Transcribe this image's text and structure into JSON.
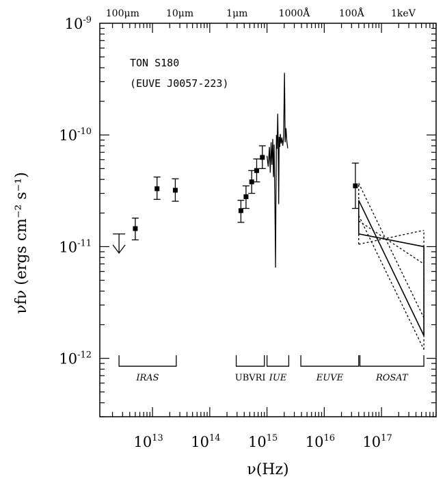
{
  "chart_data": {
    "type": "scatter",
    "xlabel": "ν(Hz)",
    "ylabel": "νfν (ergs cm⁻² s⁻¹)",
    "x_log": true,
    "y_log": true,
    "xlim": [
      1200000000000.0,
      9e+17
    ],
    "ylim": [
      3e-13,
      1e-09
    ],
    "annotations": [
      "TON S180",
      "(EUVE J0057-223)"
    ],
    "x_tick_labels": [
      "10",
      "13",
      "10",
      "14",
      "10",
      "15",
      "10",
      "16",
      "10",
      "17"
    ],
    "x_ticks": [
      10000000000000.0,
      100000000000000.0,
      1000000000000000.0,
      1e+16,
      1e+17
    ],
    "y_tick_labels": [
      "10",
      "-9",
      "10",
      "-10",
      "10",
      "-11",
      "10",
      "-12"
    ],
    "y_ticks": [
      1e-09,
      1e-10,
      1e-11,
      1e-12
    ],
    "top_axis_labels": [
      {
        "text": "100μm",
        "x": 3000000000000.0
      },
      {
        "text": "10μm",
        "x": 30000000000000.0
      },
      {
        "text": "1μm",
        "x": 300000000000000.0
      },
      {
        "text": "1000Å",
        "x": 3000000000000000.0
      },
      {
        "text": "100Å",
        "x": 3e+16
      },
      {
        "text": "1keV",
        "x": 2.4e+17
      }
    ],
    "points": [
      {
        "x": 5000000000000.0,
        "y": 1.45e-11,
        "ylo": 1.15e-11,
        "yhi": 1.8e-11
      },
      {
        "x": 12000000000000.0,
        "y": 3.3e-11,
        "ylo": 2.65e-11,
        "yhi": 4.2e-11
      },
      {
        "x": 25000000000000.0,
        "y": 3.2e-11,
        "ylo": 2.55e-11,
        "yhi": 4.05e-11
      },
      {
        "x": 350000000000000.0,
        "y": 2.1e-11,
        "ylo": 1.65e-11,
        "yhi": 2.6e-11
      },
      {
        "x": 430000000000000.0,
        "y": 2.8e-11,
        "ylo": 2.2e-11,
        "yhi": 3.5e-11
      },
      {
        "x": 540000000000000.0,
        "y": 3.8e-11,
        "ylo": 3e-11,
        "yhi": 4.8e-11
      },
      {
        "x": 660000000000000.0,
        "y": 4.8e-11,
        "ylo": 3.8e-11,
        "yhi": 6.1e-11
      },
      {
        "x": 830000000000000.0,
        "y": 6.3e-11,
        "ylo": 5e-11,
        "yhi": 8e-11
      },
      {
        "x": 3.5e+16,
        "y": 3.5e-11,
        "ylo": 2.2e-11,
        "yhi": 5.6e-11
      }
    ],
    "upper_limit": {
      "x": 2600000000000.0,
      "y": 1.3e-11
    },
    "iue_spectrum": [
      [
        1000000000000000.0,
        6.5e-11
      ],
      [
        1050000000000000.0,
        5.2e-11
      ],
      [
        1100000000000000.0,
        7.8e-11
      ],
      [
        1140000000000000.0,
        4.6e-11
      ],
      [
        1180000000000000.0,
        8.6e-11
      ],
      [
        1220000000000000.0,
        5.4e-11
      ],
      [
        1260000000000000.0,
        9.2e-11
      ],
      [
        1300000000000000.0,
        4.2e-11
      ],
      [
        1330000000000000.0,
        8.2e-11
      ],
      [
        1360000000000000.0,
        3.5e-11
      ],
      [
        1390000000000000.0,
        1.4e-11
      ],
      [
        1410000000000000.0,
        6.5e-12
      ],
      [
        1430000000000000.0,
        2.3e-11
      ],
      [
        1460000000000000.0,
        1e-10
      ],
      [
        1500000000000000.0,
        7.5e-11
      ],
      [
        1540000000000000.0,
        1.55e-10
      ],
      [
        1570000000000000.0,
        8.2e-11
      ],
      [
        1600000000000000.0,
        2.4e-11
      ],
      [
        1630000000000000.0,
        9.6e-11
      ],
      [
        1670000000000000.0,
        7.8e-11
      ],
      [
        1710000000000000.0,
        1.02e-10
      ],
      [
        1760000000000000.0,
        8.4e-11
      ],
      [
        1820000000000000.0,
        9.5e-11
      ],
      [
        1880000000000000.0,
        8e-11
      ],
      [
        1950000000000000.0,
        9.4e-11
      ],
      [
        2020000000000000.0,
        3.6e-10
      ],
      [
        2080000000000000.0,
        8.6e-11
      ],
      [
        2150000000000000.0,
        1.15e-10
      ],
      [
        2220000000000000.0,
        8.8e-11
      ],
      [
        2300000000000000.0,
        7.6e-11
      ]
    ],
    "rosat_solid_lines": [
      [
        [
          4e+16,
          2.6e-11
        ],
        [
          5.5e+17,
          1.6e-12
        ]
      ],
      [
        [
          4e+16,
          1.3e-11
        ],
        [
          5.5e+17,
          1e-11
        ]
      ],
      [
        [
          4e+16,
          1.3e-11
        ],
        [
          4e+16,
          2.6e-11
        ]
      ],
      [
        [
          5.5e+17,
          1.6e-12
        ],
        [
          5.5e+17,
          1e-11
        ]
      ]
    ],
    "rosat_dotted_lines": [
      [
        [
          4e+16,
          3.7e-11
        ],
        [
          5.5e+17,
          2.3e-12
        ]
      ],
      [
        [
          4e+16,
          1.9e-11
        ],
        [
          5.5e+17,
          1.2e-12
        ]
      ],
      [
        [
          4e+16,
          1.05e-11
        ],
        [
          5.5e+17,
          1.4e-11
        ]
      ],
      [
        [
          4e+16,
          1.7e-11
        ],
        [
          5.5e+17,
          7e-12
        ]
      ],
      [
        [
          4e+16,
          1.05e-11
        ],
        [
          4e+16,
          3.7e-11
        ]
      ],
      [
        [
          5.5e+17,
          1.2e-12
        ],
        [
          5.5e+17,
          1.4e-11
        ]
      ]
    ],
    "bands": [
      {
        "label": "IRAS",
        "italic": true,
        "x0": 2600000000000.0,
        "x1": 26000000000000.0
      },
      {
        "label": "UBVRI",
        "italic": false,
        "x0": 290000000000000.0,
        "x1": 900000000000000.0
      },
      {
        "label": "IUE",
        "italic": true,
        "x0": 1000000000000000.0,
        "x1": 2400000000000000.0
      },
      {
        "label": "EUVE",
        "italic": true,
        "x0": 3900000000000000.0,
        "x1": 4e+16
      },
      {
        "label": "ROSAT",
        "italic": true,
        "x0": 4.2e+16,
        "x1": 5.5e+17
      }
    ]
  }
}
